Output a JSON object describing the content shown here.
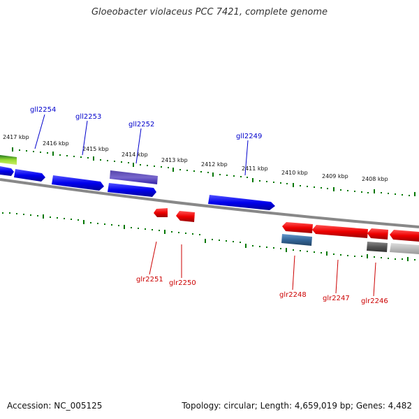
{
  "title": "Gloeobacter violaceus PCC 7421, complete genome",
  "footer": {
    "accession": "Accession: NC_005125",
    "topology": "Topology: circular; Length: 4,659,019 bp; Genes: 4,482"
  },
  "colors": {
    "forward_gene": "#0000ee",
    "reverse_gene": "#ee0000",
    "label_forward": "#0000cc",
    "label_reverse": "#cc0000",
    "tick": "#007700",
    "backbone": "#888888"
  },
  "scale_labels": [
    "2417 kbp",
    "2416 kbp",
    "2415 kbp",
    "2414 kbp",
    "2413 kbp",
    "2412 kbp",
    "2411 kbp",
    "2410 kbp",
    "2409 kbp",
    "2408 kbp"
  ],
  "gene_labels_forward": [
    "gll2254",
    "gll2253",
    "gll2252",
    "gll2249"
  ],
  "gene_labels_reverse": [
    "glr2251",
    "glr2250",
    "glr2248",
    "glr2247",
    "glr2246"
  ]
}
